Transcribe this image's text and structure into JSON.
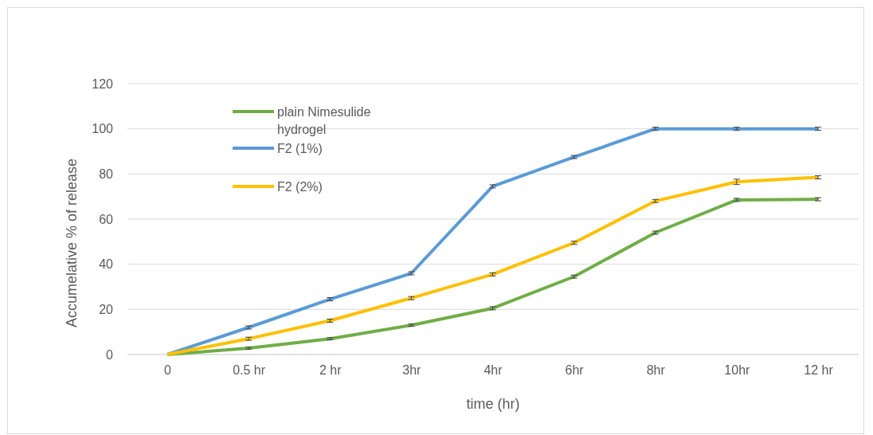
{
  "chart_data": {
    "type": "line",
    "xlabel": "time (hr)",
    "ylabel": "Accumelative % of release",
    "categories": [
      "0",
      "0.5 hr",
      "2 hr",
      "3hr",
      "4hr",
      "6hr",
      "8hr",
      "10hr",
      "12 hr"
    ],
    "series": [
      {
        "name": "plain Nimesulide hydrogel",
        "color": "#70ad47",
        "values": [
          0,
          2.8,
          7,
          13,
          20.5,
          34.5,
          54,
          68.5,
          68.8
        ],
        "errors": [
          null,
          0.5,
          0.5,
          0.5,
          0.7,
          0.7,
          0.7,
          0.7,
          0.7
        ]
      },
      {
        "name": "F2 (1%)",
        "color": "#5b9bd5",
        "values": [
          0,
          12,
          24.5,
          36,
          74.5,
          87.5,
          100,
          100,
          100
        ],
        "errors": [
          null,
          0.7,
          0.7,
          0.7,
          0.7,
          0.7,
          0.7,
          0.7,
          0.7
        ]
      },
      {
        "name": "F2 (2%)",
        "color": "#ffc000",
        "values": [
          0,
          7,
          15,
          25,
          35.5,
          49.5,
          68,
          76.5,
          78.5
        ],
        "errors": [
          null,
          0.7,
          0.7,
          0.7,
          0.7,
          0.7,
          0.7,
          1.2,
          0.7
        ]
      }
    ],
    "ylim": [
      0,
      120
    ],
    "yticks": [
      0,
      20,
      40,
      60,
      80,
      100,
      120
    ],
    "grid": "y",
    "legend": "top left",
    "line_style": "solid",
    "marker": "none"
  }
}
